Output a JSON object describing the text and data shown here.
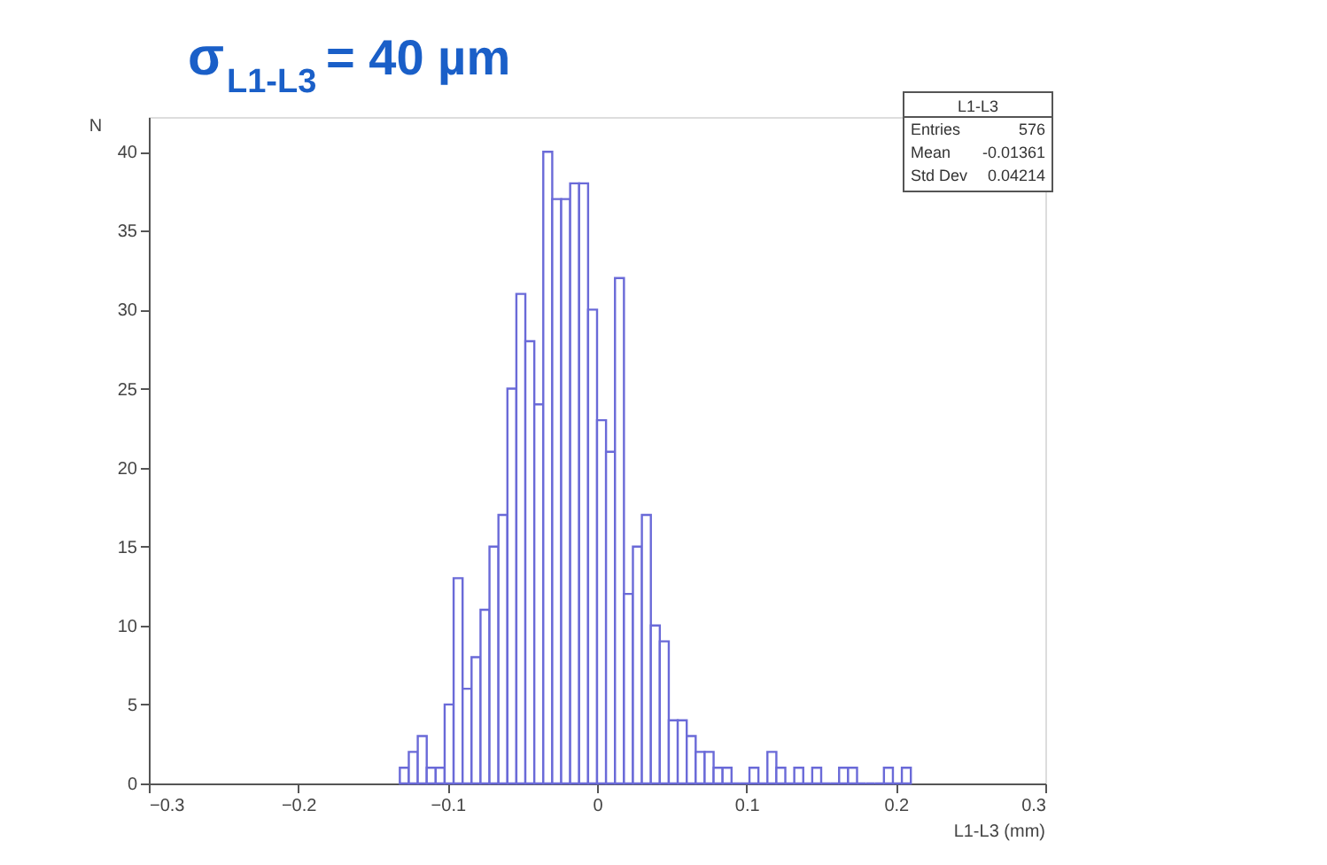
{
  "chart_data": {
    "type": "histogram",
    "title": "σ$_{L1-L3}$ = 40 µm",
    "xlabel": "L1-L3 (mm)",
    "ylabel": "N",
    "bins": [
      -0.132,
      -0.126,
      -0.12,
      -0.114,
      -0.108,
      -0.102,
      -0.096,
      -0.09,
      -0.084,
      -0.078,
      -0.072,
      -0.066,
      -0.06,
      -0.054,
      -0.048,
      -0.042,
      -0.036,
      -0.03,
      -0.024,
      -0.018,
      -0.012,
      -0.006,
      0.0,
      0.006,
      0.012,
      0.018,
      0.024,
      0.03,
      0.036,
      0.042,
      0.048,
      0.054,
      0.06,
      0.066,
      0.072,
      0.078,
      0.084,
      0.09,
      0.096,
      0.102,
      0.108,
      0.114,
      0.12,
      0.126,
      0.132,
      0.138,
      0.144,
      0.15,
      0.156,
      0.162,
      0.168,
      0.174,
      0.18,
      0.186,
      0.192,
      0.198,
      0.204,
      0.21
    ],
    "values": [
      1,
      2,
      3,
      1,
      1,
      5,
      13,
      6,
      8,
      11,
      15,
      17,
      25,
      31,
      28,
      24,
      40,
      37,
      37,
      38,
      38,
      30,
      23,
      21,
      32,
      12,
      15,
      17,
      10,
      9,
      4,
      4,
      3,
      2,
      2,
      1,
      1,
      0,
      0,
      1,
      0,
      2,
      1,
      0,
      1,
      0,
      1,
      0,
      0,
      1,
      1,
      0,
      0,
      0,
      1,
      0,
      1
    ],
    "color": "#6a6ad8",
    "xlim": [
      -0.3,
      0.3
    ],
    "xticks": [
      -0.3,
      -0.2,
      -0.1,
      0,
      0.1,
      0.2,
      0.3
    ],
    "ylim": [
      0,
      42.2
    ],
    "yticks": [
      0,
      5,
      10,
      15,
      20,
      25,
      30,
      35,
      40
    ],
    "grid": false,
    "annotations": [
      "L1-L3",
      "Entries 576",
      "Mean -0.01361",
      "Std Dev 0.04214"
    ]
  }
}
